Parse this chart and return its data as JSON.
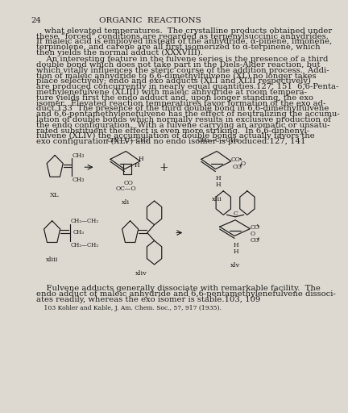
{
  "page_number": "24",
  "header": "ORGANIC  REACTIONS",
  "bg_color": "#ddd9d0",
  "text_color": "#1a1a1a",
  "para1": "what elevated temperatures.  The crystalline products obtained under\nthese “forced” conditions are regarded as terpenylsuccinic anhydrides.\nIf maleic acid is employed instead of the anhydride, α-pinene, limonene,\nterpinolene, and carene are all first isomerized to α-terpinene, which\nthen yields the normal adduct (XXXVIII).",
  "para2": "    An interesting feature in the fulvene series is the presence of a third\ndouble bond which does not take part in the Diels-Alder reaction, but\nwhich vitally influences the steric course of the addition process.  Addi-\ntion of maleic anhydride to 6,6-dimethylfulvene (XL) no longer takes\nplace selectively; endo and exo adducts (XLI and XLII respectively)\nare produced concurrently in nearly equal quantities.127, 151  6,6-Penta-\nmethylenefulvene (XLIII) with maleic anhydride at room tempera-\nture yields first the endo adduct and, upon longer standing, the exo\nisomer.  Elevated reaction temperatures favor formation of the exo ad-\nduct.133  The presence of the third double bond in 6,6-dimethylfulvene\nand 6,6-pentamethylenefulvene has the effect of neutralizing the accumu-\nlation of double bonds which normally results in exclusive production of\nthe endo configuration.  With a fulvene carrying an aromatic or unsatu-\nrated substituent the effect is even more striking.  In 6,6-diphenyl-\nfulvene (XLIV) the accumulation of double bonds actually favors the\nexo configuration (XLV) and no endo isomer is produced.127, 141",
  "para3": "    Fulvene adducts generally dissociate with remarkable facility.  The\nendo adduct of maleic anhydride and 6,6-pentamethylenefulvene dissoci-\nates readily, whereas the exo isomer is stable.103, 109",
  "footnote": "    103 Kohler and Kable, J. Am. Chem. Soc., 57, 917 (1935).",
  "base_fs": 7.2,
  "lh": 0.0138
}
